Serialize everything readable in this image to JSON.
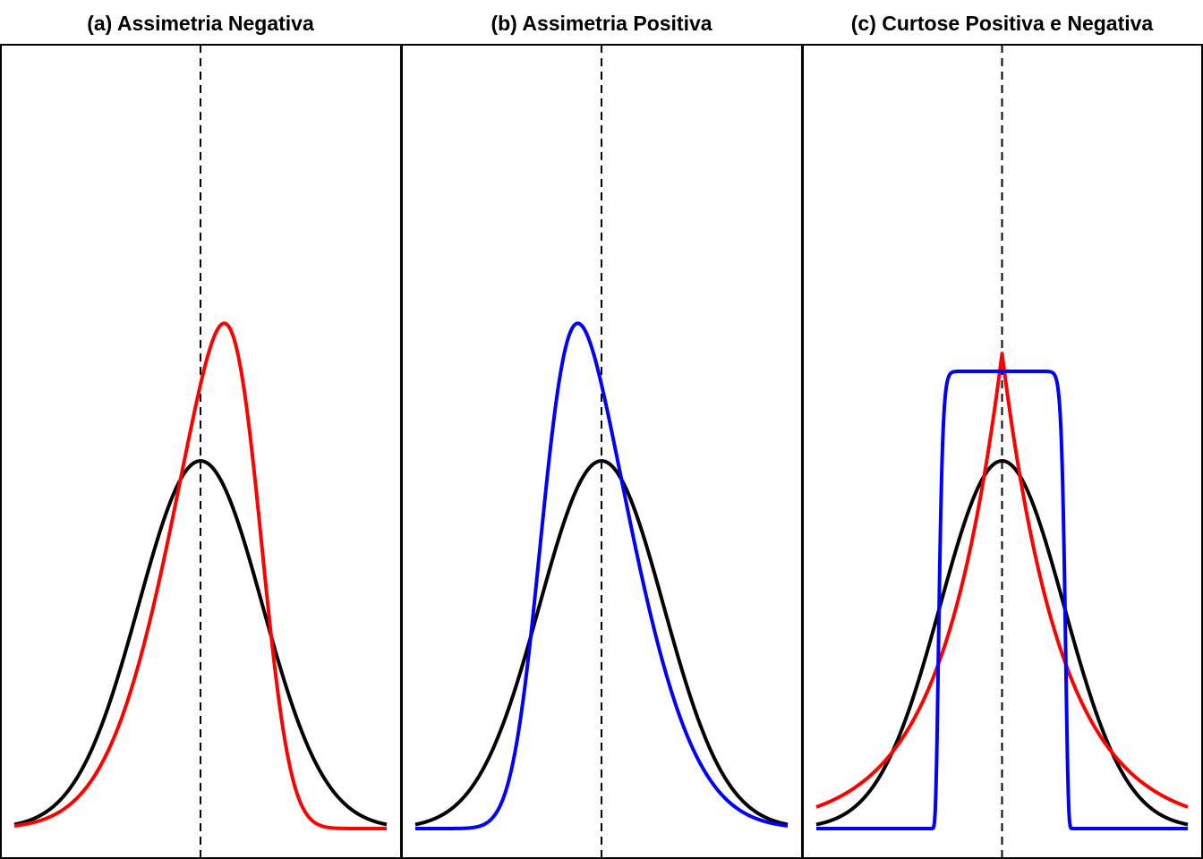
{
  "chart_data": [
    {
      "type": "line",
      "title": "(a) Assimetria Negativa",
      "xlim": [
        -3,
        3
      ],
      "ylim": [
        0,
        0.68
      ],
      "grid": false,
      "reference_line": {
        "x": 0,
        "style": "dashed",
        "color": "#000000"
      },
      "series": [
        {
          "distribution": "normal",
          "params": {
            "mean": 0,
            "sd": 1
          },
          "color": "#000000"
        },
        {
          "distribution": "skew-normal",
          "params": {
            "location": 0.95,
            "scale": 1.2,
            "shape": -3
          },
          "color": "#ff0000"
        }
      ]
    },
    {
      "type": "line",
      "title": "(b) Assimetria Positiva",
      "xlim": [
        -3,
        3
      ],
      "ylim": [
        0,
        0.68
      ],
      "grid": false,
      "reference_line": {
        "x": 0,
        "style": "dashed",
        "color": "#000000"
      },
      "series": [
        {
          "distribution": "normal",
          "params": {
            "mean": 0,
            "sd": 1
          },
          "color": "#000000"
        },
        {
          "distribution": "skew-normal",
          "params": {
            "location": -0.95,
            "scale": 1.2,
            "shape": 3
          },
          "color": "#0000ff"
        }
      ]
    },
    {
      "type": "line",
      "title": "(c) Curtose Positiva e Negativa",
      "xlim": [
        -3,
        3
      ],
      "ylim": [
        0,
        0.68
      ],
      "grid": false,
      "reference_line": {
        "x": 0,
        "style": "dashed",
        "color": "#000000"
      },
      "series": [
        {
          "distribution": "normal",
          "params": {
            "mean": 0,
            "sd": 1
          },
          "color": "#000000"
        },
        {
          "distribution": "laplace",
          "params": {
            "location": 0,
            "scale": 0.97
          },
          "color": "#ff0000"
        },
        {
          "distribution": "generalized-normal",
          "params": {
            "location": 0,
            "scale": 1.03,
            "shape": 25
          },
          "color": "#0000ff"
        }
      ]
    }
  ]
}
